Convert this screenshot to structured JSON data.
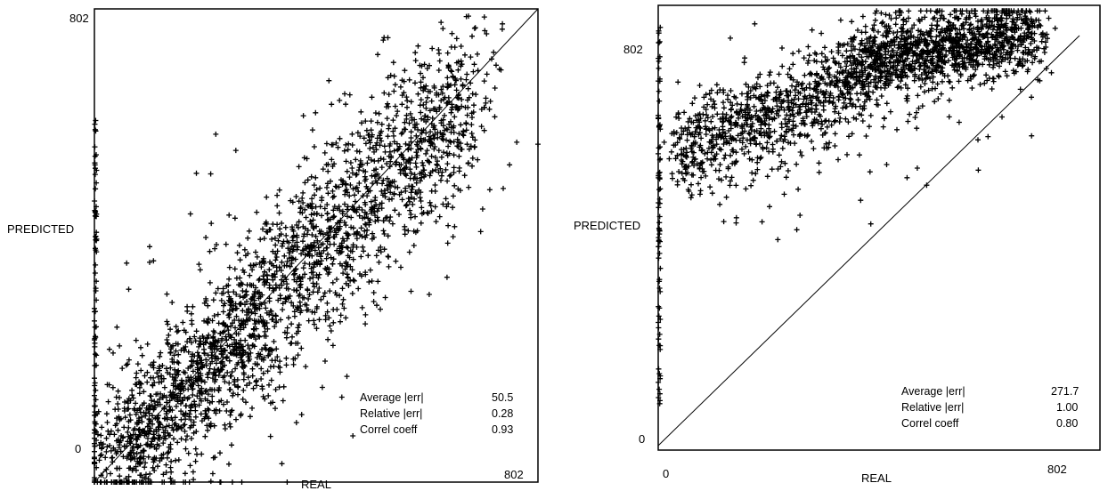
{
  "chart_data": [
    {
      "type": "scatter",
      "title": "",
      "xlabel": "REAL",
      "ylabel": "PREDICTED",
      "xlim": [
        0,
        802
      ],
      "ylim": [
        0,
        802
      ],
      "x_ticks": [
        "0",
        "802"
      ],
      "y_ticks": [
        "0",
        "802"
      ],
      "reference_line": "y = x",
      "marker": "+",
      "marker_color": "#000000",
      "grid": false,
      "stats": [
        {
          "label": "Average |err|",
          "value": "50.5"
        },
        {
          "label": "Relative |err|",
          "value": "0.28"
        },
        {
          "label": "Correl coeff",
          "value": "0.93"
        }
      ],
      "clusters": [
        {
          "x": [
            40,
            260
          ],
          "y": [
            20,
            300
          ],
          "density": "very high"
        },
        {
          "x": [
            250,
            700
          ],
          "y": [
            250,
            720
          ],
          "density": "very high"
        },
        {
          "x": [
            0,
            0
          ],
          "y": [
            50,
            650
          ],
          "density": "column at x=0"
        }
      ]
    },
    {
      "type": "scatter",
      "title": "",
      "xlabel": "REAL",
      "ylabel": "PREDICTED",
      "xlim": [
        0,
        802
      ],
      "ylim": [
        0,
        802
      ],
      "x_ticks": [
        "0",
        "802"
      ],
      "y_ticks": [
        "0",
        "802"
      ],
      "reference_line": "y = x",
      "marker": "+",
      "marker_color": "#000000",
      "grid": false,
      "stats": [
        {
          "label": "Average |err|",
          "value": "271.7"
        },
        {
          "label": "Relative |err|",
          "value": "1.00"
        },
        {
          "label": "Correl coeff",
          "value": "0.80"
        }
      ],
      "clusters": [
        {
          "x": [
            40,
            420
          ],
          "y": [
            500,
            760
          ],
          "density": "very high"
        },
        {
          "x": [
            400,
            720
          ],
          "y": [
            680,
            840
          ],
          "density": "very high"
        },
        {
          "x": [
            0,
            0
          ],
          "y": [
            100,
            820
          ],
          "density": "column at x=0"
        }
      ]
    }
  ]
}
